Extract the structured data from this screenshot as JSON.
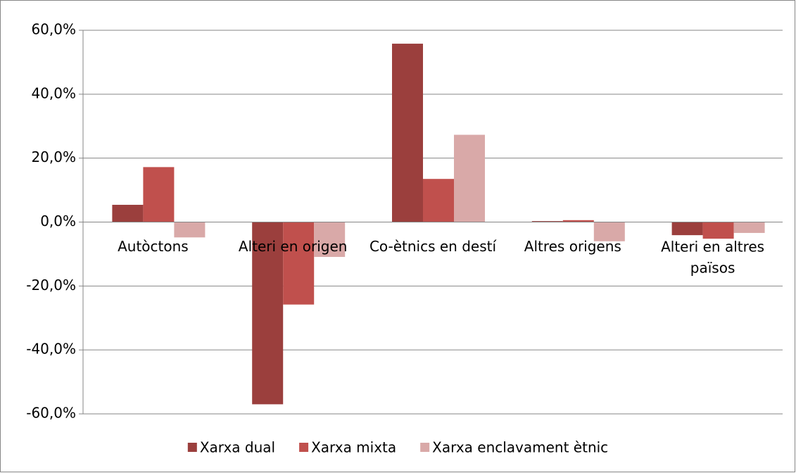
{
  "chart_data": {
    "type": "bar",
    "categories": [
      "Autòctons",
      "Alteri en origen",
      "Co-ètnics en destí",
      "Altres origens",
      "Alteri en altres països"
    ],
    "series": [
      {
        "name": "Xarxa dual",
        "color": "#9b3f3d",
        "values": [
          5.4,
          -57,
          55.8,
          0.3,
          -4.1
        ]
      },
      {
        "name": "Xarxa mixta",
        "color": "#c0504d",
        "values": [
          17.2,
          -25.8,
          13.5,
          0.6,
          -5.2
        ]
      },
      {
        "name": "Xarxa enclavament ètnic",
        "color": "#d9a9a8",
        "values": [
          -4.8,
          -10.9,
          27.3,
          -6,
          -3.4
        ]
      }
    ],
    "ylim": [
      -60,
      60
    ],
    "yticks": [
      {
        "value": -60,
        "label": "-60,0%"
      },
      {
        "value": -40,
        "label": "-40,0%"
      },
      {
        "value": -20,
        "label": "-20,0%"
      },
      {
        "value": 0,
        "label": "0,0%"
      },
      {
        "value": 20,
        "label": "20,0%"
      },
      {
        "value": 40,
        "label": "40,0%"
      },
      {
        "value": 60,
        "label": "60,0%"
      }
    ],
    "grid": true,
    "legend": "bottom"
  }
}
